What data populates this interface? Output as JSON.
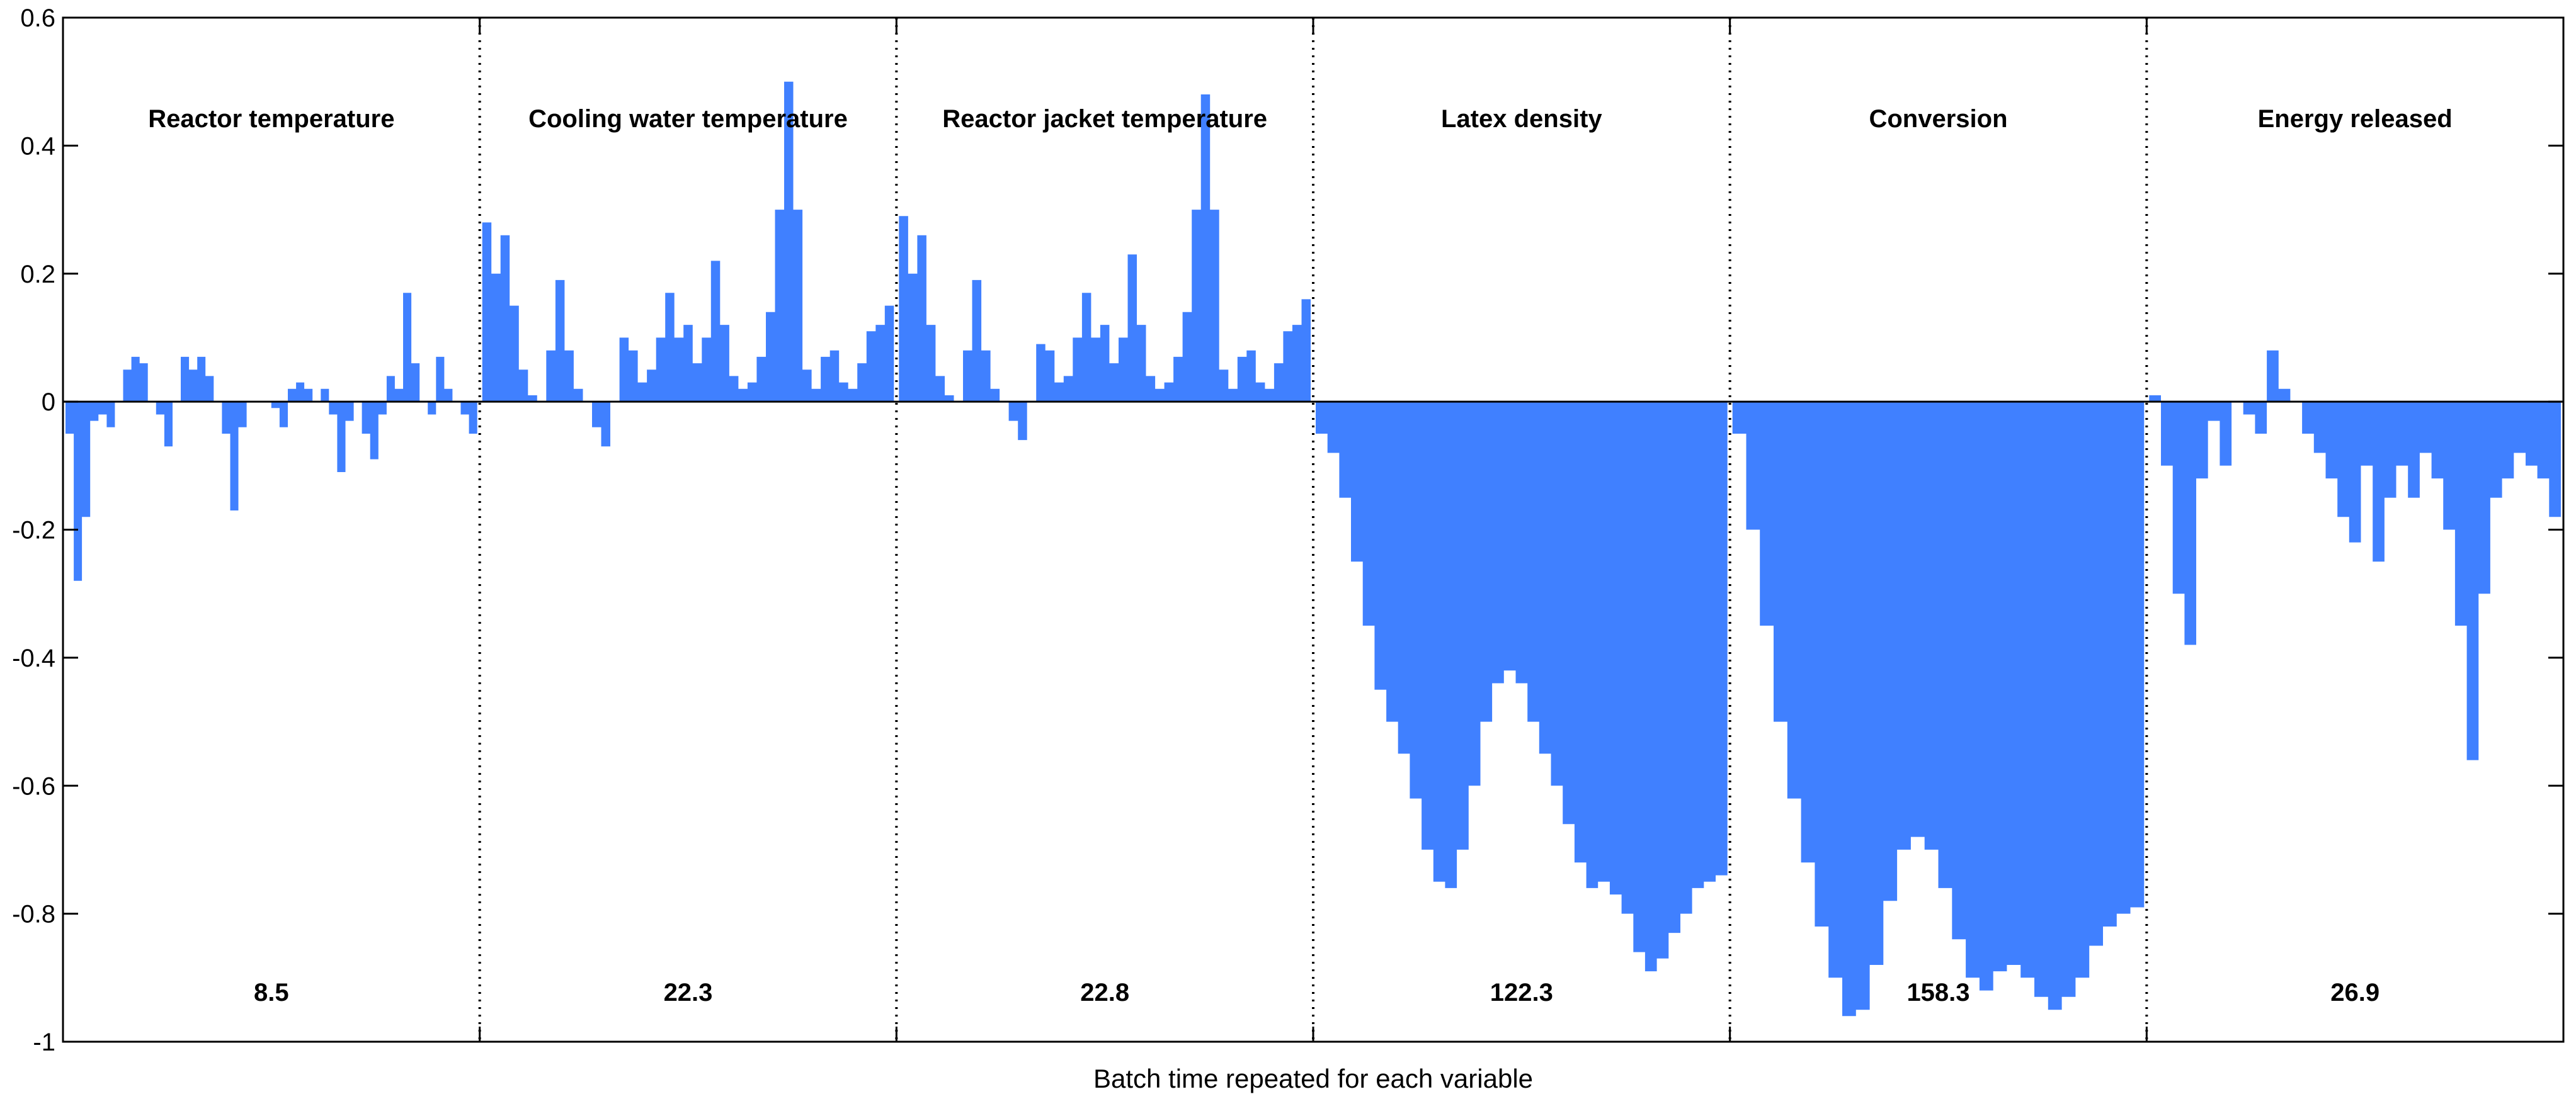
{
  "chart_data": {
    "type": "area",
    "xlabel": "Batch time repeated for each variable",
    "ylabel": "",
    "ylim": [
      -1,
      0.6
    ],
    "yticks": [
      {
        "value": 0.6,
        "label": "0.6"
      },
      {
        "value": 0.4,
        "label": "0.4"
      },
      {
        "value": 0.2,
        "label": "0.2"
      },
      {
        "value": 0,
        "label": "0"
      },
      {
        "value": -0.2,
        "label": "-0.2"
      },
      {
        "value": -0.4,
        "label": "-0.4"
      },
      {
        "value": -0.6,
        "label": "-0.6"
      },
      {
        "value": -0.8,
        "label": "-0.8"
      },
      {
        "value": -1,
        "label": "-1"
      }
    ],
    "grid": false,
    "fill_color": "#4080ff",
    "panel_separator": "dotted",
    "panels": [
      {
        "title": "Reactor temperature",
        "value_label": "8.5",
        "values": [
          -0.05,
          -0.28,
          -0.18,
          -0.03,
          -0.02,
          -0.04,
          0.0,
          0.05,
          0.07,
          0.06,
          0.0,
          -0.02,
          -0.07,
          0.0,
          0.07,
          0.05,
          0.07,
          0.04,
          0.0,
          -0.05,
          -0.17,
          -0.04,
          0.0,
          0.0,
          0.0,
          -0.01,
          -0.04,
          0.02,
          0.03,
          0.02,
          0.0,
          0.02,
          -0.02,
          -0.11,
          -0.03,
          0.0,
          -0.05,
          -0.09,
          -0.02,
          0.04,
          0.02,
          0.17,
          0.06,
          0.0,
          -0.02,
          0.07,
          0.02,
          0.0,
          -0.02,
          -0.05
        ]
      },
      {
        "title": "Cooling water temperature",
        "value_label": "22.3",
        "values": [
          0.28,
          0.2,
          0.26,
          0.15,
          0.05,
          0.01,
          0.0,
          0.08,
          0.19,
          0.08,
          0.02,
          0.0,
          -0.04,
          -0.07,
          0.0,
          0.1,
          0.08,
          0.03,
          0.05,
          0.1,
          0.17,
          0.1,
          0.12,
          0.06,
          0.1,
          0.22,
          0.12,
          0.04,
          0.02,
          0.03,
          0.07,
          0.14,
          0.3,
          0.5,
          0.3,
          0.05,
          0.02,
          0.07,
          0.08,
          0.03,
          0.02,
          0.06,
          0.11,
          0.12,
          0.15
        ]
      },
      {
        "title": "Reactor jacket temperature",
        "value_label": "22.8",
        "values": [
          0.29,
          0.2,
          0.26,
          0.12,
          0.04,
          0.01,
          0.0,
          0.08,
          0.19,
          0.08,
          0.02,
          0.0,
          -0.03,
          -0.06,
          0.0,
          0.09,
          0.08,
          0.03,
          0.04,
          0.1,
          0.17,
          0.1,
          0.12,
          0.06,
          0.1,
          0.23,
          0.12,
          0.04,
          0.02,
          0.03,
          0.07,
          0.14,
          0.3,
          0.48,
          0.3,
          0.05,
          0.02,
          0.07,
          0.08,
          0.03,
          0.02,
          0.06,
          0.11,
          0.12,
          0.16
        ]
      },
      {
        "title": "Latex density",
        "value_label": "122.3",
        "values": [
          -0.05,
          -0.08,
          -0.15,
          -0.25,
          -0.35,
          -0.45,
          -0.5,
          -0.55,
          -0.62,
          -0.7,
          -0.75,
          -0.76,
          -0.7,
          -0.6,
          -0.5,
          -0.44,
          -0.42,
          -0.44,
          -0.5,
          -0.55,
          -0.6,
          -0.66,
          -0.72,
          -0.76,
          -0.75,
          -0.77,
          -0.8,
          -0.86,
          -0.89,
          -0.87,
          -0.83,
          -0.8,
          -0.76,
          -0.75,
          -0.74
        ]
      },
      {
        "title": "Conversion",
        "value_label": "158.3",
        "values": [
          -0.05,
          -0.2,
          -0.35,
          -0.5,
          -0.62,
          -0.72,
          -0.82,
          -0.9,
          -0.96,
          -0.95,
          -0.88,
          -0.78,
          -0.7,
          -0.68,
          -0.7,
          -0.76,
          -0.84,
          -0.9,
          -0.92,
          -0.89,
          -0.88,
          -0.9,
          -0.93,
          -0.95,
          -0.93,
          -0.9,
          -0.85,
          -0.82,
          -0.8,
          -0.79
        ]
      },
      {
        "title": "Energy released",
        "value_label": "26.9",
        "values": [
          0.01,
          -0.1,
          -0.3,
          -0.38,
          -0.12,
          -0.03,
          -0.1,
          0.0,
          -0.02,
          -0.05,
          0.08,
          0.02,
          0.0,
          -0.05,
          -0.08,
          -0.12,
          -0.18,
          -0.22,
          -0.1,
          -0.25,
          -0.15,
          -0.1,
          -0.15,
          -0.08,
          -0.12,
          -0.2,
          -0.35,
          -0.56,
          -0.3,
          -0.15,
          -0.12,
          -0.08,
          -0.1,
          -0.12,
          -0.18
        ]
      }
    ]
  }
}
